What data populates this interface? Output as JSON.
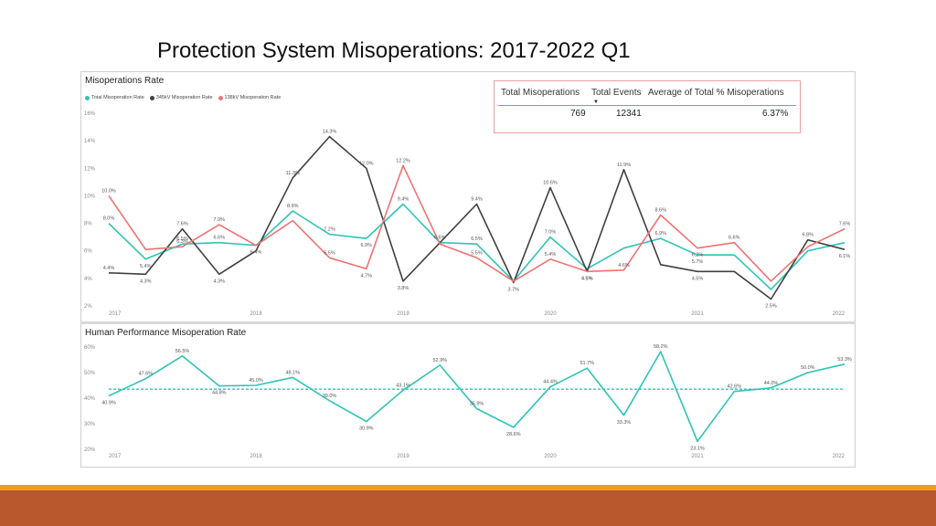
{
  "slide": {
    "title": "Protection System Misoperations:  2017-2022 Q1"
  },
  "colors": {
    "teal": "#2ec4b6",
    "dark": "#404040",
    "salmon": "#f07272",
    "orange_bar": "#f29b1f",
    "rust_bar": "#b8582c"
  },
  "kpi": {
    "headers": [
      "Total Misoperations",
      "Total Events",
      "Average of Total % Misoperations"
    ],
    "values": [
      "769",
      "12341",
      "6.37%"
    ],
    "sort_icon": "sort-down-icon"
  },
  "chart_data": [
    {
      "type": "line",
      "title": "Misoperations Rate",
      "y_ticks": [
        "16%",
        "14%",
        "12%",
        "10%",
        "8%",
        "6%",
        "4%",
        "2%"
      ],
      "ylim": [
        2,
        16
      ],
      "x_ticks": [
        "2017",
        "2018",
        "2019",
        "2020",
        "2021",
        "2022"
      ],
      "legend_position": "top-left",
      "n_points": 21,
      "series": [
        {
          "name": "Total Misoperation Rate",
          "color": "#2ec4b6",
          "values": [
            8.0,
            5.4,
            6.5,
            6.6,
            6.4,
            8.9,
            7.2,
            6.9,
            9.4,
            6.6,
            6.5,
            3.8,
            7.0,
            4.7,
            6.2,
            6.9,
            5.7,
            5.7,
            3.2,
            6.0,
            6.6
          ],
          "labels": [
            "8.0%",
            "5.4%",
            "6.5%",
            "6.6%",
            "6.4%",
            "8.9%",
            "7.2%",
            "6.9%",
            "9.4%",
            "6.6%",
            "6.5%",
            "",
            "7.0%",
            "",
            "",
            "6.9%",
            "5.7%",
            "",
            "",
            "",
            ""
          ]
        },
        {
          "name": "345kV Misoperation Rate",
          "color": "#404040",
          "values": [
            4.4,
            4.3,
            7.6,
            4.3,
            6.0,
            11.3,
            14.3,
            12.0,
            3.8,
            6.6,
            9.4,
            3.7,
            10.6,
            4.5,
            11.9,
            5.0,
            4.5,
            4.5,
            2.5,
            6.8,
            6.1
          ],
          "labels": [
            "4.4%",
            "4.3%",
            "7.6%",
            "4.3%",
            "",
            "11.3%",
            "14.3%",
            "12.0%",
            "3.8%",
            "",
            "9.4%",
            "3.7%",
            "10.6%",
            "4.5%",
            "11.9%",
            "",
            "4.5%",
            "",
            "2.5%",
            "6.8%",
            "6.1%"
          ]
        },
        {
          "name": "138kV Misoperation Rate",
          "color": "#f07272",
          "values": [
            10.0,
            6.1,
            6.3,
            7.9,
            6.4,
            8.2,
            5.5,
            4.7,
            12.2,
            6.5,
            5.5,
            3.8,
            5.4,
            4.5,
            4.6,
            8.6,
            6.2,
            6.6,
            3.8,
            6.3,
            7.6
          ],
          "labels": [
            "10.0%",
            "",
            "6.3%",
            "7.9%",
            "",
            "",
            "5.5%",
            "4.7%",
            "12.2%",
            "",
            "5.5%",
            "",
            "5.4%",
            "4.5%",
            "4.6%",
            "8.6%",
            "6.2%",
            "6.6%",
            "",
            "",
            "7.6%"
          ]
        }
      ]
    },
    {
      "type": "line",
      "title": "Human Performance Misoperation Rate",
      "y_ticks": [
        "60%",
        "50%",
        "40%",
        "30%",
        "20%"
      ],
      "ylim": [
        20,
        60
      ],
      "x_ticks": [
        "2017",
        "2018",
        "2019",
        "2020",
        "2021",
        "2022"
      ],
      "n_points": 21,
      "series": [
        {
          "name": "Human Performance Misoperation Rate",
          "color": "#2ec4b6",
          "values": [
            40.9,
            47.6,
            56.5,
            44.8,
            45.0,
            48.1,
            39.0,
            30.9,
            43.1,
            52.9,
            35.9,
            28.6,
            44.4,
            51.7,
            33.3,
            58.2,
            23.1,
            42.6,
            44.0,
            50.0,
            53.3
          ],
          "labels": [
            "40.9%",
            "47.6%",
            "56.5%",
            "44.8%",
            "45.0%",
            "48.1%",
            "39.0%",
            "30.9%",
            "43.1%",
            "52.9%",
            "35.9%",
            "28.6%",
            "44.4%",
            "51.7%",
            "33.3%",
            "58.2%",
            "23.1%",
            "42.6%",
            "44.0%",
            "50.0%",
            "53.3%"
          ]
        }
      ],
      "average_line": 43.5
    }
  ]
}
